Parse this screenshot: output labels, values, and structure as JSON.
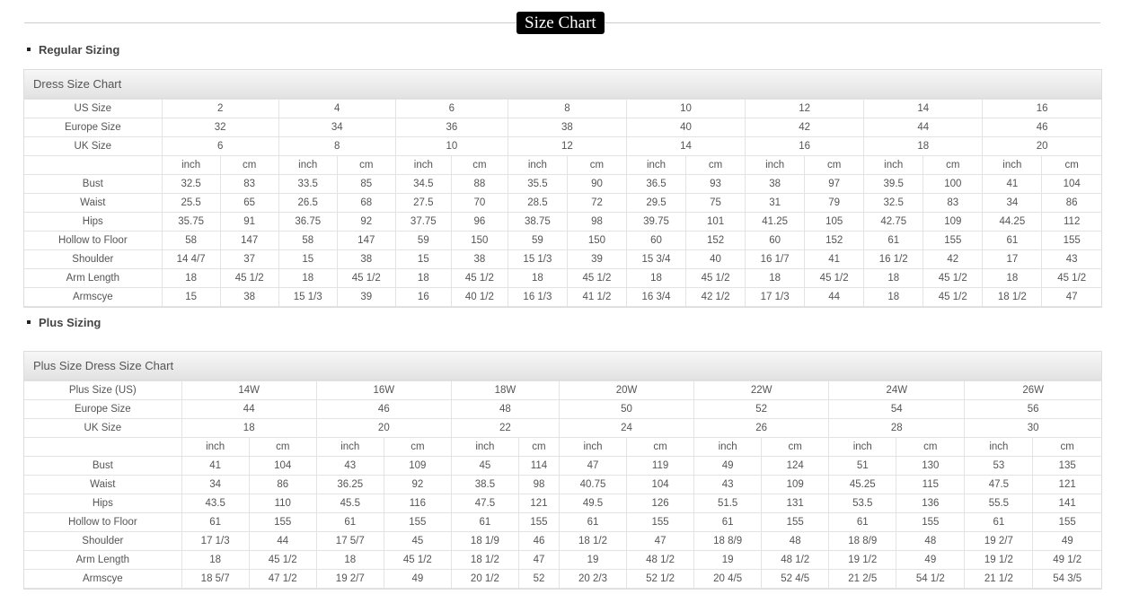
{
  "page_title": "Size Chart",
  "regular": {
    "section_label": "Regular Sizing",
    "chart_title": "Dress Size Chart",
    "size_rows": [
      {
        "label": "US Size",
        "values": [
          "2",
          "4",
          "6",
          "8",
          "10",
          "12",
          "14",
          "16"
        ]
      },
      {
        "label": "Europe Size",
        "values": [
          "32",
          "34",
          "36",
          "38",
          "40",
          "42",
          "44",
          "46"
        ]
      },
      {
        "label": "UK Size",
        "values": [
          "6",
          "8",
          "10",
          "12",
          "14",
          "16",
          "18",
          "20"
        ]
      }
    ],
    "unit_labels": [
      "inch",
      "cm"
    ],
    "measure_rows": [
      {
        "label": "Bust",
        "values": [
          "32.5",
          "83",
          "33.5",
          "85",
          "34.5",
          "88",
          "35.5",
          "90",
          "36.5",
          "93",
          "38",
          "97",
          "39.5",
          "100",
          "41",
          "104"
        ]
      },
      {
        "label": "Waist",
        "values": [
          "25.5",
          "65",
          "26.5",
          "68",
          "27.5",
          "70",
          "28.5",
          "72",
          "29.5",
          "75",
          "31",
          "79",
          "32.5",
          "83",
          "34",
          "86"
        ]
      },
      {
        "label": "Hips",
        "values": [
          "35.75",
          "91",
          "36.75",
          "92",
          "37.75",
          "96",
          "38.75",
          "98",
          "39.75",
          "101",
          "41.25",
          "105",
          "42.75",
          "109",
          "44.25",
          "112"
        ]
      },
      {
        "label": "Hollow to Floor",
        "values": [
          "58",
          "147",
          "58",
          "147",
          "59",
          "150",
          "59",
          "150",
          "60",
          "152",
          "60",
          "152",
          "61",
          "155",
          "61",
          "155"
        ]
      },
      {
        "label": "Shoulder",
        "values": [
          "14 4/7",
          "37",
          "15",
          "38",
          "15",
          "38",
          "15 1/3",
          "39",
          "15 3/4",
          "40",
          "16 1/7",
          "41",
          "16 1/2",
          "42",
          "17",
          "43"
        ]
      },
      {
        "label": "Arm Length",
        "values": [
          "18",
          "45 1/2",
          "18",
          "45 1/2",
          "18",
          "45 1/2",
          "18",
          "45 1/2",
          "18",
          "45 1/2",
          "18",
          "45 1/2",
          "18",
          "45 1/2",
          "18",
          "45 1/2"
        ]
      },
      {
        "label": "Armscye",
        "values": [
          "15",
          "38",
          "15 1/3",
          "39",
          "16",
          "40 1/2",
          "16 1/3",
          "41 1/2",
          "16 3/4",
          "42 1/2",
          "17 1/3",
          "44",
          "18",
          "45 1/2",
          "18 1/2",
          "47"
        ]
      }
    ]
  },
  "plus": {
    "section_label": "Plus Sizing",
    "chart_title": "Plus Size Dress Size Chart",
    "size_rows": [
      {
        "label": "Plus Size (US)",
        "values": [
          "14W",
          "16W",
          "18W",
          "20W",
          "22W",
          "24W",
          "26W"
        ]
      },
      {
        "label": "Europe Size",
        "values": [
          "44",
          "46",
          "48",
          "50",
          "52",
          "54",
          "56"
        ]
      },
      {
        "label": "UK Size",
        "values": [
          "18",
          "20",
          "22",
          "24",
          "26",
          "28",
          "30"
        ]
      }
    ],
    "unit_labels": [
      "inch",
      "cm"
    ],
    "measure_rows": [
      {
        "label": "Bust",
        "values": [
          "41",
          "104",
          "43",
          "109",
          "45",
          "114",
          "47",
          "119",
          "49",
          "124",
          "51",
          "130",
          "53",
          "135"
        ]
      },
      {
        "label": "Waist",
        "values": [
          "34",
          "86",
          "36.25",
          "92",
          "38.5",
          "98",
          "40.75",
          "104",
          "43",
          "109",
          "45.25",
          "115",
          "47.5",
          "121"
        ]
      },
      {
        "label": "Hips",
        "values": [
          "43.5",
          "110",
          "45.5",
          "116",
          "47.5",
          "121",
          "49.5",
          "126",
          "51.5",
          "131",
          "53.5",
          "136",
          "55.5",
          "141"
        ]
      },
      {
        "label": "Hollow to Floor",
        "values": [
          "61",
          "155",
          "61",
          "155",
          "61",
          "155",
          "61",
          "155",
          "61",
          "155",
          "61",
          "155",
          "61",
          "155"
        ]
      },
      {
        "label": "Shoulder",
        "values": [
          "17 1/3",
          "44",
          "17 5/7",
          "45",
          "18 1/9",
          "46",
          "18 1/2",
          "47",
          "18 8/9",
          "48",
          "18 8/9",
          "48",
          "19 2/7",
          "49"
        ]
      },
      {
        "label": "Arm Length",
        "values": [
          "18",
          "45 1/2",
          "18",
          "45 1/2",
          "18 1/2",
          "47",
          "19",
          "48 1/2",
          "19",
          "48 1/2",
          "19 1/2",
          "49",
          "19 1/2",
          "49 1/2"
        ]
      },
      {
        "label": "Armscye",
        "values": [
          "18 5/7",
          "47 1/2",
          "19 2/7",
          "49",
          "20 1/2",
          "52",
          "20 2/3",
          "52 1/2",
          "20 4/5",
          "52 4/5",
          "21 2/5",
          "54 1/2",
          "21 1/2",
          "54 3/5"
        ]
      }
    ]
  }
}
